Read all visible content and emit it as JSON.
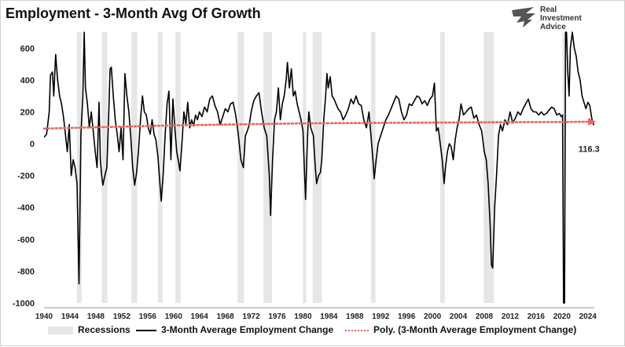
{
  "title": "Employment - 3-Month Avg Of Growth",
  "logo": {
    "line1": "Real",
    "line2": "Investment",
    "line3": "Advice"
  },
  "chart_data": {
    "type": "line",
    "title": "Employment - 3-Month Avg Of Growth",
    "xlabel": "",
    "ylabel": "",
    "xlim": [
      1940,
      2025
    ],
    "ylim": [
      -1000,
      700
    ],
    "y_ticks": [
      "-1000",
      "-800",
      "-600",
      "-400",
      "-200",
      "0",
      "200",
      "400",
      "600"
    ],
    "x_ticks": [
      "1940",
      "1944",
      "1948",
      "1952",
      "1956",
      "1960",
      "1964",
      "1968",
      "1972",
      "1976",
      "1980",
      "1984",
      "1988",
      "1992",
      "1996",
      "2000",
      "2004",
      "2008",
      "2012",
      "2016",
      "2020",
      "2024"
    ],
    "grid": false,
    "legend_position": "bottom",
    "last_value_label": "116.3",
    "recessions": [
      [
        1945.1,
        1945.8
      ],
      [
        1948.9,
        1949.8
      ],
      [
        1953.5,
        1954.4
      ],
      [
        1957.6,
        1958.3
      ],
      [
        1960.3,
        1961.1
      ],
      [
        1969.9,
        1970.9
      ],
      [
        1973.9,
        1975.2
      ],
      [
        1980.0,
        1980.5
      ],
      [
        1981.5,
        1982.9
      ],
      [
        1990.5,
        1991.2
      ],
      [
        2001.2,
        2001.9
      ],
      [
        2007.9,
        2009.5
      ],
      [
        2020.1,
        2020.4
      ]
    ],
    "series": [
      {
        "name": "Recessions",
        "color": "#e6e6e6",
        "style": "band"
      },
      {
        "name": "3-Month Average Employment Change",
        "color": "#000000",
        "style": "solid",
        "points": [
          [
            1940.0,
            40
          ],
          [
            1940.4,
            60
          ],
          [
            1940.8,
            200
          ],
          [
            1941.0,
            430
          ],
          [
            1941.3,
            450
          ],
          [
            1941.5,
            300
          ],
          [
            1941.8,
            560
          ],
          [
            1942.1,
            400
          ],
          [
            1942.4,
            300
          ],
          [
            1942.7,
            250
          ],
          [
            1943.0,
            170
          ],
          [
            1943.3,
            60
          ],
          [
            1943.6,
            -50
          ],
          [
            1943.9,
            120
          ],
          [
            1944.2,
            -200
          ],
          [
            1944.5,
            -100
          ],
          [
            1944.8,
            -150
          ],
          [
            1945.1,
            -250
          ],
          [
            1945.4,
            -880
          ],
          [
            1945.7,
            50
          ],
          [
            1946.0,
            300
          ],
          [
            1946.2,
            700
          ],
          [
            1946.4,
            350
          ],
          [
            1946.7,
            250
          ],
          [
            1947.0,
            100
          ],
          [
            1947.3,
            200
          ],
          [
            1947.6,
            80
          ],
          [
            1947.9,
            -50
          ],
          [
            1948.2,
            -150
          ],
          [
            1948.5,
            260
          ],
          [
            1948.7,
            -100
          ],
          [
            1948.9,
            -200
          ],
          [
            1949.1,
            -260
          ],
          [
            1949.4,
            -200
          ],
          [
            1949.7,
            -150
          ],
          [
            1950.0,
            200
          ],
          [
            1950.2,
            470
          ],
          [
            1950.4,
            480
          ],
          [
            1950.7,
            300
          ],
          [
            1951.0,
            150
          ],
          [
            1951.3,
            60
          ],
          [
            1951.6,
            -50
          ],
          [
            1951.9,
            100
          ],
          [
            1952.2,
            -100
          ],
          [
            1952.5,
            440
          ],
          [
            1952.8,
            300
          ],
          [
            1953.1,
            200
          ],
          [
            1953.4,
            40
          ],
          [
            1953.7,
            -150
          ],
          [
            1954.0,
            -260
          ],
          [
            1954.3,
            -180
          ],
          [
            1954.6,
            -40
          ],
          [
            1954.9,
            150
          ],
          [
            1955.2,
            300
          ],
          [
            1955.5,
            200
          ],
          [
            1955.8,
            180
          ],
          [
            1956.1,
            100
          ],
          [
            1956.4,
            60
          ],
          [
            1956.7,
            150
          ],
          [
            1957.0,
            60
          ],
          [
            1957.3,
            20
          ],
          [
            1957.6,
            -80
          ],
          [
            1957.9,
            -250
          ],
          [
            1958.1,
            -360
          ],
          [
            1958.4,
            -200
          ],
          [
            1958.7,
            50
          ],
          [
            1959.0,
            250
          ],
          [
            1959.3,
            330
          ],
          [
            1959.6,
            -100
          ],
          [
            1959.9,
            280
          ],
          [
            1960.2,
            100
          ],
          [
            1960.5,
            -50
          ],
          [
            1960.8,
            -120
          ],
          [
            1961.0,
            -170
          ],
          [
            1961.3,
            0
          ],
          [
            1961.6,
            200
          ],
          [
            1961.9,
            120
          ],
          [
            1962.2,
            260
          ],
          [
            1962.5,
            100
          ],
          [
            1962.8,
            150
          ],
          [
            1963.1,
            110
          ],
          [
            1963.4,
            180
          ],
          [
            1963.7,
            150
          ],
          [
            1964.0,
            200
          ],
          [
            1964.4,
            170
          ],
          [
            1964.8,
            230
          ],
          [
            1965.2,
            200
          ],
          [
            1965.6,
            280
          ],
          [
            1966.0,
            300
          ],
          [
            1966.4,
            240
          ],
          [
            1966.8,
            200
          ],
          [
            1967.2,
            120
          ],
          [
            1967.6,
            170
          ],
          [
            1968.0,
            220
          ],
          [
            1968.4,
            200
          ],
          [
            1968.8,
            250
          ],
          [
            1969.2,
            260
          ],
          [
            1969.6,
            180
          ],
          [
            1970.0,
            60
          ],
          [
            1970.4,
            -100
          ],
          [
            1970.8,
            -150
          ],
          [
            1971.1,
            50
          ],
          [
            1971.4,
            80
          ],
          [
            1971.7,
            120
          ],
          [
            1972.0,
            200
          ],
          [
            1972.4,
            270
          ],
          [
            1972.8,
            300
          ],
          [
            1973.2,
            320
          ],
          [
            1973.6,
            200
          ],
          [
            1974.0,
            100
          ],
          [
            1974.4,
            50
          ],
          [
            1974.8,
            -200
          ],
          [
            1975.0,
            -450
          ],
          [
            1975.3,
            -100
          ],
          [
            1975.6,
            150
          ],
          [
            1975.9,
            200
          ],
          [
            1976.2,
            350
          ],
          [
            1976.5,
            150
          ],
          [
            1976.8,
            250
          ],
          [
            1977.1,
            300
          ],
          [
            1977.4,
            400
          ],
          [
            1977.6,
            510
          ],
          [
            1977.9,
            350
          ],
          [
            1978.2,
            470
          ],
          [
            1978.5,
            300
          ],
          [
            1978.8,
            330
          ],
          [
            1979.1,
            250
          ],
          [
            1979.4,
            200
          ],
          [
            1979.7,
            150
          ],
          [
            1980.0,
            80
          ],
          [
            1980.2,
            -150
          ],
          [
            1980.4,
            -350
          ],
          [
            1980.7,
            50
          ],
          [
            1980.9,
            200
          ],
          [
            1981.2,
            100
          ],
          [
            1981.6,
            50
          ],
          [
            1981.9,
            -150
          ],
          [
            1982.1,
            -250
          ],
          [
            1982.4,
            -200
          ],
          [
            1982.7,
            -180
          ],
          [
            1982.9,
            -100
          ],
          [
            1983.2,
            150
          ],
          [
            1983.5,
            300
          ],
          [
            1983.7,
            440
          ],
          [
            1983.9,
            350
          ],
          [
            1984.2,
            420
          ],
          [
            1984.5,
            300
          ],
          [
            1984.8,
            280
          ],
          [
            1985.1,
            250
          ],
          [
            1985.4,
            220
          ],
          [
            1985.8,
            200
          ],
          [
            1986.2,
            150
          ],
          [
            1986.6,
            180
          ],
          [
            1987.0,
            220
          ],
          [
            1987.4,
            280
          ],
          [
            1987.8,
            250
          ],
          [
            1988.2,
            300
          ],
          [
            1988.6,
            250
          ],
          [
            1989.0,
            240
          ],
          [
            1989.4,
            150
          ],
          [
            1989.8,
            100
          ],
          [
            1990.2,
            200
          ],
          [
            1990.5,
            50
          ],
          [
            1990.8,
            -100
          ],
          [
            1991.0,
            -220
          ],
          [
            1991.3,
            -100
          ],
          [
            1991.6,
            0
          ],
          [
            1992.0,
            50
          ],
          [
            1992.4,
            100
          ],
          [
            1992.8,
            150
          ],
          [
            1993.2,
            180
          ],
          [
            1993.6,
            220
          ],
          [
            1994.0,
            260
          ],
          [
            1994.4,
            300
          ],
          [
            1994.8,
            280
          ],
          [
            1995.2,
            200
          ],
          [
            1995.6,
            150
          ],
          [
            1996.0,
            180
          ],
          [
            1996.4,
            250
          ],
          [
            1996.8,
            240
          ],
          [
            1997.2,
            270
          ],
          [
            1997.6,
            300
          ],
          [
            1998.0,
            290
          ],
          [
            1998.4,
            250
          ],
          [
            1998.8,
            270
          ],
          [
            1999.2,
            240
          ],
          [
            1999.6,
            280
          ],
          [
            2000.0,
            300
          ],
          [
            2000.3,
            380
          ],
          [
            2000.6,
            80
          ],
          [
            2000.9,
            100
          ],
          [
            2001.2,
            0
          ],
          [
            2001.5,
            -100
          ],
          [
            2001.8,
            -250
          ],
          [
            2002.0,
            -150
          ],
          [
            2002.3,
            -50
          ],
          [
            2002.6,
            0
          ],
          [
            2002.9,
            -20
          ],
          [
            2003.2,
            -100
          ],
          [
            2003.5,
            20
          ],
          [
            2003.8,
            100
          ],
          [
            2004.1,
            150
          ],
          [
            2004.4,
            250
          ],
          [
            2004.8,
            180
          ],
          [
            2005.2,
            200
          ],
          [
            2005.6,
            220
          ],
          [
            2006.0,
            230
          ],
          [
            2006.4,
            160
          ],
          [
            2006.8,
            180
          ],
          [
            2007.2,
            120
          ],
          [
            2007.6,
            80
          ],
          [
            2008.0,
            -50
          ],
          [
            2008.3,
            -100
          ],
          [
            2008.6,
            -250
          ],
          [
            2008.9,
            -500
          ],
          [
            2009.1,
            -760
          ],
          [
            2009.3,
            -780
          ],
          [
            2009.6,
            -400
          ],
          [
            2009.9,
            -200
          ],
          [
            2010.2,
            50
          ],
          [
            2010.5,
            120
          ],
          [
            2010.8,
            80
          ],
          [
            2011.2,
            150
          ],
          [
            2011.6,
            120
          ],
          [
            2012.0,
            200
          ],
          [
            2012.4,
            130
          ],
          [
            2012.8,
            160
          ],
          [
            2013.2,
            200
          ],
          [
            2013.6,
            180
          ],
          [
            2014.0,
            220
          ],
          [
            2014.4,
            250
          ],
          [
            2014.8,
            280
          ],
          [
            2015.2,
            220
          ],
          [
            2015.6,
            200
          ],
          [
            2016.0,
            200
          ],
          [
            2016.4,
            180
          ],
          [
            2016.8,
            200
          ],
          [
            2017.2,
            180
          ],
          [
            2017.6,
            190
          ],
          [
            2018.0,
            210
          ],
          [
            2018.4,
            230
          ],
          [
            2018.8,
            220
          ],
          [
            2019.2,
            180
          ],
          [
            2019.6,
            190
          ],
          [
            2019.9,
            170
          ],
          [
            2020.1,
            180
          ],
          [
            2020.25,
            -1000
          ],
          [
            2020.4,
            -1000
          ],
          [
            2020.55,
            700
          ],
          [
            2020.7,
            700
          ],
          [
            2020.9,
            450
          ],
          [
            2021.1,
            300
          ],
          [
            2021.3,
            600
          ],
          [
            2021.6,
            700
          ],
          [
            2021.9,
            600
          ],
          [
            2022.2,
            550
          ],
          [
            2022.5,
            450
          ],
          [
            2022.8,
            400
          ],
          [
            2023.1,
            300
          ],
          [
            2023.4,
            260
          ],
          [
            2023.7,
            220
          ],
          [
            2024.0,
            260
          ],
          [
            2024.3,
            240
          ],
          [
            2024.6,
            160
          ],
          [
            2024.9,
            116.3
          ]
        ]
      },
      {
        "name": "Poly. (3-Month Average Employment Change)",
        "color": "#e8685e",
        "style": "dotted-arrow",
        "points": [
          [
            1940,
            95
          ],
          [
            1960,
            115
          ],
          [
            1980,
            128
          ],
          [
            2000,
            133
          ],
          [
            2010,
            135
          ],
          [
            2020,
            137
          ],
          [
            2024.9,
            138
          ]
        ]
      }
    ]
  }
}
